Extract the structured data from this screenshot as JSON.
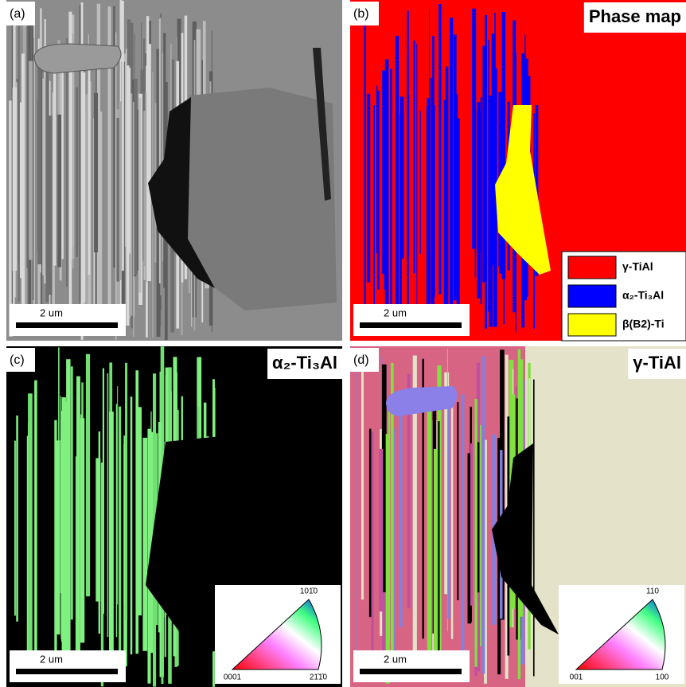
{
  "panels": [
    {
      "label": "(a)",
      "scale_bar": "2 um"
    },
    {
      "label": "(b)",
      "title": "Phase map",
      "scale_bar": "2 um",
      "legend": [
        {
          "label": "γ-TiAl",
          "color": "#ff0000"
        },
        {
          "label": "α₂-Ti₃Al",
          "color": "#0000ff"
        },
        {
          "label": "β(B2)-Ti",
          "color": "#ffff00"
        }
      ]
    },
    {
      "label": "(c)",
      "title": "α₂-Ti₃Al",
      "scale_bar": "2 um",
      "ipf": {
        "top": "101̄0",
        "left": "0001",
        "right": "21̄1̄0"
      }
    },
    {
      "label": "(d)",
      "title": "γ-TiAl",
      "scale_bar": "2 um",
      "ipf": {
        "top": "110",
        "left": "001",
        "right": "100"
      }
    }
  ]
}
